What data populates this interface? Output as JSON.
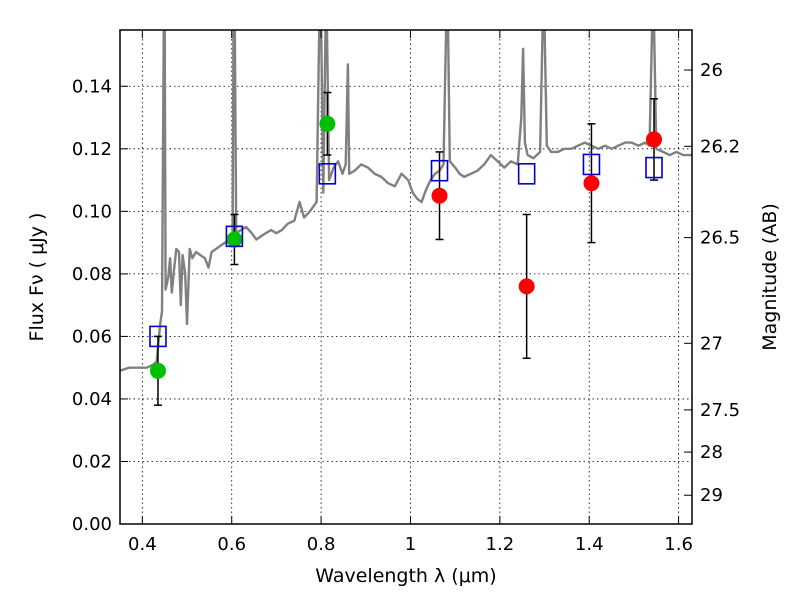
{
  "chart_data": {
    "type": "scatter",
    "xlabel": "Wavelength  λ (μm)",
    "ylabel": "Flux  Fν  ( μJy )",
    "y2label": "Magnitude (AB)",
    "xlim": [
      0.35,
      1.63
    ],
    "ylim": [
      0.0,
      0.158
    ],
    "grid": true,
    "x_ticks": [
      {
        "value": 0.4,
        "label": "0.4"
      },
      {
        "value": 0.6,
        "label": "0.6"
      },
      {
        "value": 0.8,
        "label": "0.8"
      },
      {
        "value": 1.0,
        "label": "1"
      },
      {
        "value": 1.2,
        "label": "1.2"
      },
      {
        "value": 1.4,
        "label": "1.4"
      },
      {
        "value": 1.6,
        "label": "1.6"
      }
    ],
    "y_ticks": [
      {
        "value": 0.0,
        "label": "0.00"
      },
      {
        "value": 0.02,
        "label": "0.02"
      },
      {
        "value": 0.04,
        "label": "0.04"
      },
      {
        "value": 0.06,
        "label": "0.06"
      },
      {
        "value": 0.08,
        "label": "0.08"
      },
      {
        "value": 0.1,
        "label": "0.10"
      },
      {
        "value": 0.12,
        "label": "0.12"
      },
      {
        "value": 0.14,
        "label": "0.14"
      }
    ],
    "y2_ticks": [
      {
        "flux": 0.1452,
        "label": "26"
      },
      {
        "flux": 0.1208,
        "label": "26.2"
      },
      {
        "flux": 0.0916,
        "label": "26.5"
      },
      {
        "flux": 0.0578,
        "label": "27"
      },
      {
        "flux": 0.0365,
        "label": "27.5"
      },
      {
        "flux": 0.023,
        "label": "28"
      },
      {
        "flux": 0.0092,
        "label": "29"
      }
    ],
    "series": [
      {
        "kind": "observed",
        "color": "#00bf00",
        "points": [
          {
            "x": 0.435,
            "y": 0.049,
            "ylo": 0.038,
            "yhi": 0.06
          },
          {
            "x": 0.606,
            "y": 0.091,
            "ylo": 0.083,
            "yhi": 0.099
          },
          {
            "x": 0.814,
            "y": 0.128,
            "ylo": 0.118,
            "yhi": 0.138
          }
        ]
      },
      {
        "kind": "observed",
        "color": "#ff0000",
        "points": [
          {
            "x": 1.065,
            "y": 0.105,
            "ylo": 0.091,
            "yhi": 0.119
          },
          {
            "x": 1.26,
            "y": 0.076,
            "ylo": 0.053,
            "yhi": 0.099
          },
          {
            "x": 1.405,
            "y": 0.109,
            "ylo": 0.09,
            "yhi": 0.128
          },
          {
            "x": 1.545,
            "y": 0.123,
            "ylo": 0.11,
            "yhi": 0.136
          }
        ]
      },
      {
        "kind": "model",
        "color": "#0000cc",
        "points": [
          {
            "x": 0.435,
            "y": 0.06
          },
          {
            "x": 0.606,
            "y": 0.092
          },
          {
            "x": 0.814,
            "y": 0.112
          },
          {
            "x": 1.065,
            "y": 0.113
          },
          {
            "x": 1.26,
            "y": 0.112
          },
          {
            "x": 1.405,
            "y": 0.115
          },
          {
            "x": 1.545,
            "y": 0.114
          }
        ]
      }
    ],
    "spectrum": {
      "color": "#808080",
      "points": [
        [
          0.35,
          0.049
        ],
        [
          0.37,
          0.05
        ],
        [
          0.39,
          0.05
        ],
        [
          0.41,
          0.05
        ],
        [
          0.425,
          0.051
        ],
        [
          0.432,
          0.052
        ],
        [
          0.436,
          0.058
        ],
        [
          0.44,
          0.064
        ],
        [
          0.444,
          0.068
        ],
        [
          0.448,
          0.16
        ],
        [
          0.45,
          0.16
        ],
        [
          0.452,
          0.075
        ],
        [
          0.458,
          0.079
        ],
        [
          0.462,
          0.085
        ],
        [
          0.466,
          0.074
        ],
        [
          0.47,
          0.08
        ],
        [
          0.476,
          0.088
        ],
        [
          0.482,
          0.087
        ],
        [
          0.486,
          0.07
        ],
        [
          0.49,
          0.086
        ],
        [
          0.496,
          0.08
        ],
        [
          0.5,
          0.064
        ],
        [
          0.506,
          0.088
        ],
        [
          0.512,
          0.085
        ],
        [
          0.52,
          0.087
        ],
        [
          0.53,
          0.086
        ],
        [
          0.54,
          0.085
        ],
        [
          0.548,
          0.082
        ],
        [
          0.555,
          0.087
        ],
        [
          0.565,
          0.088
        ],
        [
          0.575,
          0.089
        ],
        [
          0.585,
          0.09
        ],
        [
          0.595,
          0.091
        ],
        [
          0.602,
          0.092
        ],
        [
          0.604,
          0.16
        ],
        [
          0.607,
          0.16
        ],
        [
          0.61,
          0.093
        ],
        [
          0.62,
          0.094
        ],
        [
          0.632,
          0.095
        ],
        [
          0.645,
          0.093
        ],
        [
          0.655,
          0.091
        ],
        [
          0.665,
          0.092
        ],
        [
          0.676,
          0.093
        ],
        [
          0.688,
          0.094
        ],
        [
          0.7,
          0.093
        ],
        [
          0.712,
          0.094
        ],
        [
          0.725,
          0.096
        ],
        [
          0.74,
          0.097
        ],
        [
          0.752,
          0.103
        ],
        [
          0.762,
          0.098
        ],
        [
          0.775,
          0.1
        ],
        [
          0.79,
          0.103
        ],
        [
          0.796,
          0.16
        ],
        [
          0.8,
          0.16
        ],
        [
          0.805,
          0.106
        ],
        [
          0.81,
          0.16
        ],
        [
          0.813,
          0.16
        ],
        [
          0.818,
          0.11
        ],
        [
          0.828,
          0.114
        ],
        [
          0.838,
          0.116
        ],
        [
          0.848,
          0.112
        ],
        [
          0.855,
          0.115
        ],
        [
          0.86,
          0.147
        ],
        [
          0.863,
          0.112
        ],
        [
          0.875,
          0.113
        ],
        [
          0.89,
          0.115
        ],
        [
          0.905,
          0.114
        ],
        [
          0.92,
          0.112
        ],
        [
          0.935,
          0.111
        ],
        [
          0.95,
          0.109
        ],
        [
          0.965,
          0.108
        ],
        [
          0.98,
          0.112
        ],
        [
          0.995,
          0.11
        ],
        [
          1.005,
          0.106
        ],
        [
          1.015,
          0.104
        ],
        [
          1.025,
          0.103
        ],
        [
          1.035,
          0.107
        ],
        [
          1.045,
          0.11
        ],
        [
          1.055,
          0.112
        ],
        [
          1.065,
          0.113
        ],
        [
          1.074,
          0.115
        ],
        [
          1.08,
          0.16
        ],
        [
          1.084,
          0.16
        ],
        [
          1.088,
          0.116
        ],
        [
          1.1,
          0.114
        ],
        [
          1.11,
          0.112
        ],
        [
          1.12,
          0.111
        ],
        [
          1.135,
          0.112
        ],
        [
          1.15,
          0.113
        ],
        [
          1.165,
          0.115
        ],
        [
          1.18,
          0.118
        ],
        [
          1.195,
          0.116
        ],
        [
          1.21,
          0.114
        ],
        [
          1.225,
          0.116
        ],
        [
          1.24,
          0.115
        ],
        [
          1.248,
          0.13
        ],
        [
          1.252,
          0.152
        ],
        [
          1.256,
          0.122
        ],
        [
          1.262,
          0.118
        ],
        [
          1.275,
          0.117
        ],
        [
          1.29,
          0.119
        ],
        [
          1.296,
          0.16
        ],
        [
          1.3,
          0.16
        ],
        [
          1.305,
          0.121
        ],
        [
          1.315,
          0.119
        ],
        [
          1.33,
          0.119
        ],
        [
          1.345,
          0.12
        ],
        [
          1.36,
          0.12
        ],
        [
          1.375,
          0.121
        ],
        [
          1.39,
          0.122
        ],
        [
          1.405,
          0.121
        ],
        [
          1.42,
          0.12
        ],
        [
          1.435,
          0.121
        ],
        [
          1.45,
          0.12
        ],
        [
          1.465,
          0.121
        ],
        [
          1.48,
          0.122
        ],
        [
          1.495,
          0.122
        ],
        [
          1.51,
          0.121
        ],
        [
          1.525,
          0.122
        ],
        [
          1.535,
          0.121
        ],
        [
          1.541,
          0.16
        ],
        [
          1.545,
          0.16
        ],
        [
          1.55,
          0.12
        ],
        [
          1.565,
          0.119
        ],
        [
          1.58,
          0.118
        ],
        [
          1.595,
          0.119
        ],
        [
          1.61,
          0.118
        ],
        [
          1.63,
          0.118
        ]
      ]
    }
  }
}
